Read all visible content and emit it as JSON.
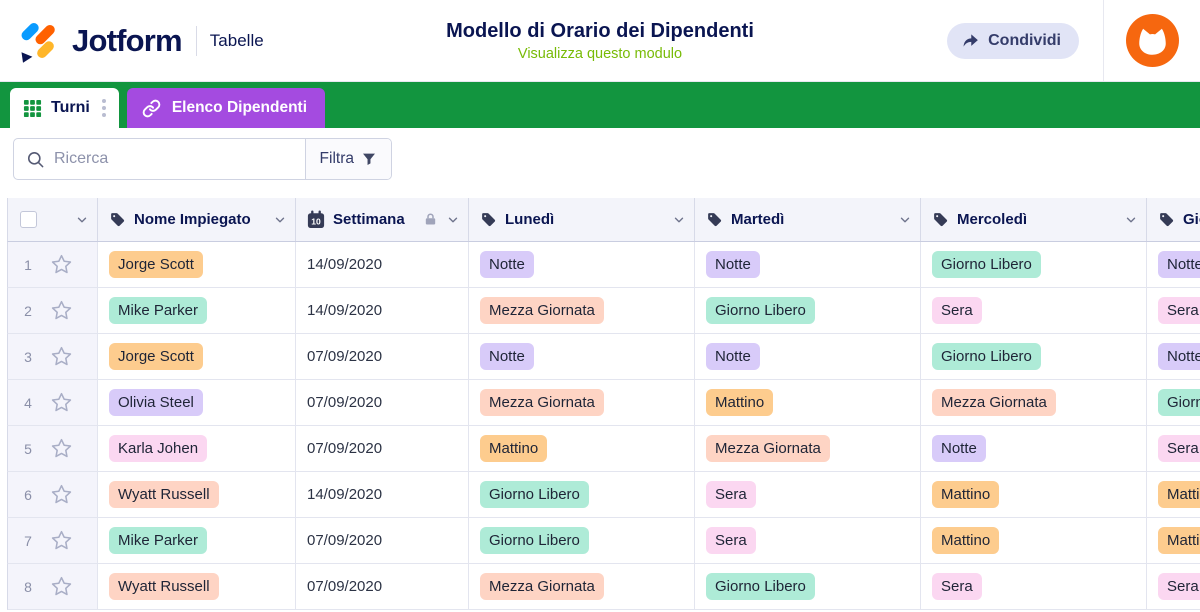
{
  "brand": {
    "name": "Jotform",
    "product": "Tabelle"
  },
  "header": {
    "title": "Modello di Orario dei Dipendenti",
    "subtitle": "Visualizza questo modulo",
    "share_label": "Condividi"
  },
  "tabs": [
    {
      "label": "Turni",
      "active": true
    },
    {
      "label": "Elenco Dipendenti",
      "active": false
    }
  ],
  "toolbar": {
    "search_placeholder": "Ricerca",
    "filter_label": "Filtra"
  },
  "colors": {
    "green_bar": "#12953f",
    "tab_purple": "#a44be0",
    "navy": "#0a1551",
    "subtitle_green": "#78bb07",
    "avatar_orange": "#f6670f",
    "logo_blue": "#0a9bff",
    "logo_orange": "#ff6100",
    "logo_amber": "#ffb629"
  },
  "badge_colors": {
    "orange": "#fdcc8e",
    "mint": "#aeebd7",
    "purple": "#d8cbf9",
    "pink": "#fbd7f1",
    "salmon": "#fed4c4"
  },
  "table": {
    "columns": [
      {
        "label": "Nome Impiegato",
        "icon": "tag"
      },
      {
        "label": "Settimana",
        "icon": "calendar",
        "locked": true
      },
      {
        "label": "Lunedì",
        "icon": "tag"
      },
      {
        "label": "Martedì",
        "icon": "tag"
      },
      {
        "label": "Mercoledì",
        "icon": "tag"
      },
      {
        "label": "Giovedì",
        "icon": "tag"
      }
    ],
    "rows": [
      {
        "num": "1",
        "name": {
          "text": "Jorge Scott",
          "color": "orange"
        },
        "week": "14/09/2020",
        "mon": {
          "text": "Notte",
          "color": "purple"
        },
        "tue": {
          "text": "Notte",
          "color": "purple"
        },
        "wed": {
          "text": "Giorno Libero",
          "color": "mint"
        },
        "thu": {
          "text": "Notte",
          "color": "purple"
        }
      },
      {
        "num": "2",
        "name": {
          "text": "Mike Parker",
          "color": "mint"
        },
        "week": "14/09/2020",
        "mon": {
          "text": "Mezza Giornata",
          "color": "salmon"
        },
        "tue": {
          "text": "Giorno Libero",
          "color": "mint"
        },
        "wed": {
          "text": "Sera",
          "color": "pink"
        },
        "thu": {
          "text": "Sera",
          "color": "pink"
        }
      },
      {
        "num": "3",
        "name": {
          "text": "Jorge Scott",
          "color": "orange"
        },
        "week": "07/09/2020",
        "mon": {
          "text": "Notte",
          "color": "purple"
        },
        "tue": {
          "text": "Notte",
          "color": "purple"
        },
        "wed": {
          "text": "Giorno Libero",
          "color": "mint"
        },
        "thu": {
          "text": "Notte",
          "color": "purple"
        }
      },
      {
        "num": "4",
        "name": {
          "text": "Olivia Steel",
          "color": "purple"
        },
        "week": "07/09/2020",
        "mon": {
          "text": "Mezza Giornata",
          "color": "salmon"
        },
        "tue": {
          "text": "Mattino",
          "color": "orange"
        },
        "wed": {
          "text": "Mezza Giornata",
          "color": "salmon"
        },
        "thu": {
          "text": "Giorno Libero",
          "color": "mint"
        }
      },
      {
        "num": "5",
        "name": {
          "text": "Karla Johen",
          "color": "pink"
        },
        "week": "07/09/2020",
        "mon": {
          "text": "Mattino",
          "color": "orange"
        },
        "tue": {
          "text": "Mezza Giornata",
          "color": "salmon"
        },
        "wed": {
          "text": "Notte",
          "color": "purple"
        },
        "thu": {
          "text": "Sera",
          "color": "pink"
        }
      },
      {
        "num": "6",
        "name": {
          "text": "Wyatt Russell",
          "color": "salmon"
        },
        "week": "14/09/2020",
        "mon": {
          "text": "Giorno Libero",
          "color": "mint"
        },
        "tue": {
          "text": "Sera",
          "color": "pink"
        },
        "wed": {
          "text": "Mattino",
          "color": "orange"
        },
        "thu": {
          "text": "Mattino",
          "color": "orange"
        }
      },
      {
        "num": "7",
        "name": {
          "text": "Mike Parker",
          "color": "mint"
        },
        "week": "07/09/2020",
        "mon": {
          "text": "Giorno Libero",
          "color": "mint"
        },
        "tue": {
          "text": "Sera",
          "color": "pink"
        },
        "wed": {
          "text": "Mattino",
          "color": "orange"
        },
        "thu": {
          "text": "Mattino",
          "color": "orange"
        }
      },
      {
        "num": "8",
        "name": {
          "text": "Wyatt Russell",
          "color": "salmon"
        },
        "week": "07/09/2020",
        "mon": {
          "text": "Mezza Giornata",
          "color": "salmon"
        },
        "tue": {
          "text": "Giorno Libero",
          "color": "mint"
        },
        "wed": {
          "text": "Sera",
          "color": "pink"
        },
        "thu": {
          "text": "Sera",
          "color": "pink"
        }
      }
    ]
  }
}
